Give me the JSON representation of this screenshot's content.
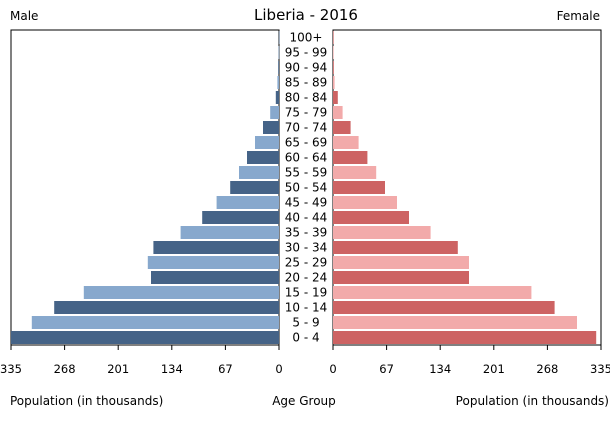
{
  "chart_data": {
    "type": "bar",
    "title": "Liberia - 2016",
    "left_label": "Male",
    "right_label": "Female",
    "xlabel_left": "Population (in thousands)",
    "xlabel_center": "Age Group",
    "xlabel_right": "Population (in thousands)",
    "xlim": [
      0,
      335
    ],
    "tick_values": [
      335,
      268,
      201,
      134,
      67,
      0
    ],
    "tick_labels_left": [
      "335",
      "268",
      "201",
      "134",
      "67",
      "0"
    ],
    "tick_labels_right": [
      "0",
      "67",
      "134",
      "201",
      "268",
      "335"
    ],
    "categories": [
      "100+",
      "95 - 99",
      "90 - 94",
      "85 - 89",
      "80 - 84",
      "75 - 79",
      "70 - 74",
      "65 - 69",
      "60 - 64",
      "55 - 59",
      "50 - 54",
      "45 - 49",
      "40 - 44",
      "35 - 39",
      "30 - 34",
      "25 - 29",
      "20 - 24",
      "15 - 19",
      "10 - 14",
      "5 - 9",
      "0 - 4"
    ],
    "series": [
      {
        "name": "Male",
        "values": [
          0.2,
          0.5,
          1,
          2,
          4,
          11,
          20,
          30,
          40,
          50,
          61,
          78,
          96,
          123,
          157,
          164,
          160,
          244,
          281,
          309,
          335
        ]
      },
      {
        "name": "Female",
        "values": [
          0.2,
          0.5,
          1,
          2,
          6,
          12,
          22,
          32,
          43,
          54,
          65,
          80,
          95,
          122,
          156,
          170,
          170,
          248,
          277,
          305,
          329
        ]
      }
    ],
    "colors": {
      "male_dark": "#456387",
      "male_light": "#87A8CD",
      "female_dark": "#CD6363",
      "female_light": "#F2AAAA"
    },
    "legend": "none",
    "grid": false
  }
}
